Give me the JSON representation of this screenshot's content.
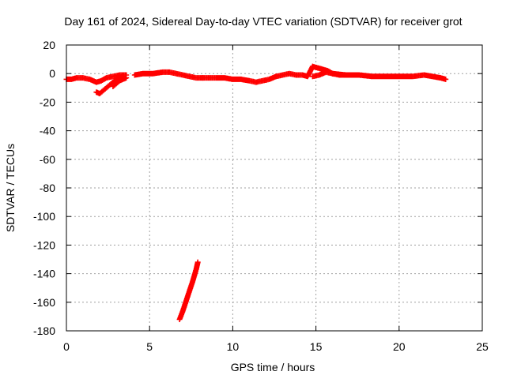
{
  "chart_data": {
    "type": "scatter",
    "title": "Day 161 of 2024, Sidereal Day-to-day VTEC variation (SDTVAR) for receiver grot",
    "xlabel": "GPS time / hours",
    "ylabel": "SDTVAR / TECUs",
    "xlim": [
      0,
      25
    ],
    "ylim": [
      -180,
      20
    ],
    "xticks": [
      "0",
      "5",
      "10",
      "15",
      "20",
      "25"
    ],
    "yticks": [
      "20",
      "0",
      "-20",
      "-40",
      "-60",
      "-80",
      "-100",
      "-120",
      "-140",
      "-160",
      "-180"
    ],
    "grid": true,
    "marker": "plus",
    "series": [
      {
        "color": "#ff0000",
        "segments": [
          {
            "x": [
              0.0,
              0.3,
              0.6,
              1.0,
              1.4,
              1.8,
              2.1,
              2.4,
              2.8,
              3.2,
              3.6
            ],
            "y": [
              -4,
              -4,
              -3,
              -3,
              -4,
              -6,
              -5,
              -3,
              -2,
              -1,
              -1
            ]
          },
          {
            "x": [
              1.8,
              2.0,
              2.2,
              2.4,
              2.6,
              2.8,
              3.0,
              3.2,
              3.4
            ],
            "y": [
              -13,
              -14,
              -12,
              -10,
              -8,
              -6,
              -4,
              -3,
              -2
            ]
          },
          {
            "x": [
              2.8,
              3.0,
              3.2,
              3.4,
              3.6
            ],
            "y": [
              -9,
              -7,
              -5,
              -4,
              -3
            ]
          },
          {
            "x": [
              4.1,
              4.6,
              5.2,
              5.8,
              6.2,
              6.6,
              7.0,
              7.4,
              7.8,
              8.2
            ],
            "y": [
              -1,
              0,
              0,
              1,
              1,
              0,
              -1,
              -2,
              -3,
              -3
            ]
          },
          {
            "x": [
              8.2,
              8.6,
              9.0,
              9.5,
              10.0,
              10.5,
              11.0,
              11.4,
              11.8,
              12.2,
              12.6
            ],
            "y": [
              -3,
              -3,
              -3,
              -3,
              -4,
              -4,
              -5,
              -6,
              -5,
              -4,
              -2
            ]
          },
          {
            "x": [
              12.6,
              13.0,
              13.4,
              13.8,
              14.2,
              14.5,
              14.8,
              15.1,
              15.4,
              15.7,
              16.0
            ],
            "y": [
              -2,
              -1,
              0,
              -1,
              -1,
              -2,
              5,
              4,
              3,
              2,
              0
            ]
          },
          {
            "x": [
              14.8,
              15.2,
              15.6,
              16.0,
              16.4,
              16.8
            ],
            "y": [
              -2,
              -1,
              1,
              0,
              -1,
              -1
            ]
          },
          {
            "x": [
              16.0,
              16.8,
              17.6,
              18.4,
              19.2,
              20.0,
              20.8,
              21.5,
              22.0,
              22.5,
              22.8
            ],
            "y": [
              0,
              -1,
              -1,
              -2,
              -2,
              -2,
              -2,
              -1,
              -2,
              -3,
              -4
            ]
          },
          {
            "x": [
              6.8,
              7.0,
              7.2,
              7.4,
              7.6,
              7.8,
              7.9
            ],
            "y": [
              -172,
              -166,
              -159,
              -152,
              -145,
              -137,
              -132
            ]
          }
        ]
      }
    ]
  }
}
